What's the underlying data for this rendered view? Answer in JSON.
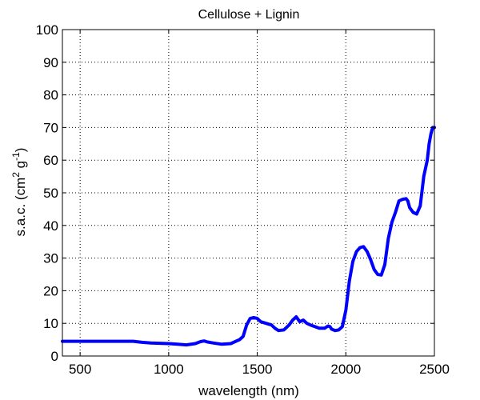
{
  "chart_data": {
    "type": "line",
    "title": "Cellulose + Lignin",
    "xlabel": "wavelength (nm)",
    "ylabel": {
      "prefix": "s.a.c. (cm",
      "sup1": "2",
      "mid": " g",
      "sup2": "-1",
      "suffix": ")"
    },
    "xlim": [
      400,
      2500
    ],
    "ylim": [
      0,
      100
    ],
    "xticks": [
      500,
      1000,
      1500,
      2000,
      2500
    ],
    "yticks": [
      0,
      10,
      20,
      30,
      40,
      50,
      60,
      70,
      80,
      90,
      100
    ],
    "grid": true,
    "series": [
      {
        "color": "#0000ff",
        "x": [
          400,
          500,
          600,
          700,
          800,
          850,
          900,
          1000,
          1050,
          1100,
          1150,
          1180,
          1200,
          1220,
          1250,
          1300,
          1350,
          1400,
          1420,
          1440,
          1460,
          1480,
          1500,
          1520,
          1550,
          1580,
          1600,
          1620,
          1650,
          1680,
          1700,
          1720,
          1740,
          1760,
          1780,
          1800,
          1850,
          1880,
          1900,
          1910,
          1920,
          1940,
          1960,
          1980,
          2000,
          2020,
          2040,
          2060,
          2080,
          2100,
          2120,
          2140,
          2160,
          2180,
          2200,
          2220,
          2240,
          2260,
          2280,
          2300,
          2320,
          2340,
          2350,
          2360,
          2380,
          2400,
          2420,
          2440,
          2460,
          2470,
          2480,
          2490,
          2500
        ],
        "y": [
          4.5,
          4.5,
          4.5,
          4.5,
          4.5,
          4.2,
          4.0,
          3.8,
          3.6,
          3.4,
          3.8,
          4.4,
          4.6,
          4.3,
          4.0,
          3.6,
          3.8,
          5.0,
          6.0,
          9.5,
          11.5,
          11.8,
          11.5,
          10.5,
          10.0,
          9.5,
          8.5,
          7.8,
          8.0,
          9.5,
          11.0,
          12.0,
          10.5,
          11.0,
          10.0,
          9.5,
          8.5,
          8.5,
          9.2,
          9.0,
          8.2,
          7.8,
          8.0,
          9.0,
          14.0,
          23.0,
          29.0,
          32.0,
          33.2,
          33.5,
          32.0,
          29.5,
          26.5,
          25.0,
          24.8,
          28.0,
          36.0,
          41.0,
          44.0,
          47.5,
          48.0,
          48.2,
          47.5,
          45.5,
          44.0,
          43.5,
          46.0,
          55.0,
          60.0,
          65.0,
          68.0,
          70.0,
          70.0
        ]
      }
    ]
  }
}
